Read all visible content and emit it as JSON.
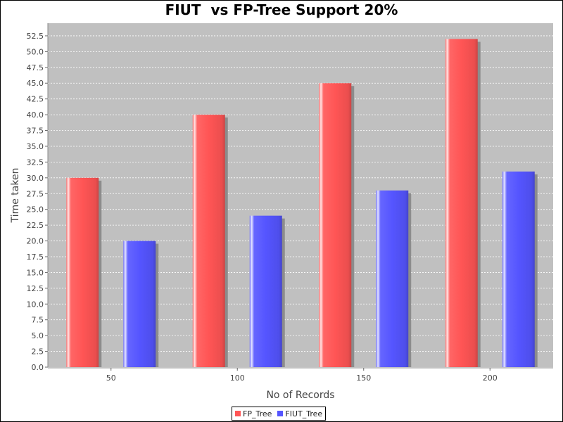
{
  "chart_data": {
    "type": "bar",
    "title": "FIUT  vs FP-Tree Support 20%",
    "xlabel": "No of Records",
    "ylabel": "Time taken",
    "categories": [
      "50",
      "100",
      "150",
      "200"
    ],
    "series": [
      {
        "name": "FP_Tree",
        "color": "#ff5555",
        "values": [
          30,
          40,
          45,
          52
        ]
      },
      {
        "name": "FIUT_Tree",
        "color": "#5555ff",
        "values": [
          20,
          24,
          28,
          31
        ]
      }
    ],
    "ylim": [
      0,
      54.5
    ],
    "yticks": [
      "0.0",
      "2.5",
      "5.0",
      "7.5",
      "10.0",
      "12.5",
      "15.0",
      "17.5",
      "20.0",
      "22.5",
      "25.0",
      "27.5",
      "30.0",
      "32.5",
      "35.0",
      "37.5",
      "40.0",
      "42.5",
      "45.0",
      "47.5",
      "50.0",
      "52.5"
    ],
    "grid": true,
    "legend_position": "bottom-center",
    "plot_background": "#c0c0c0"
  }
}
